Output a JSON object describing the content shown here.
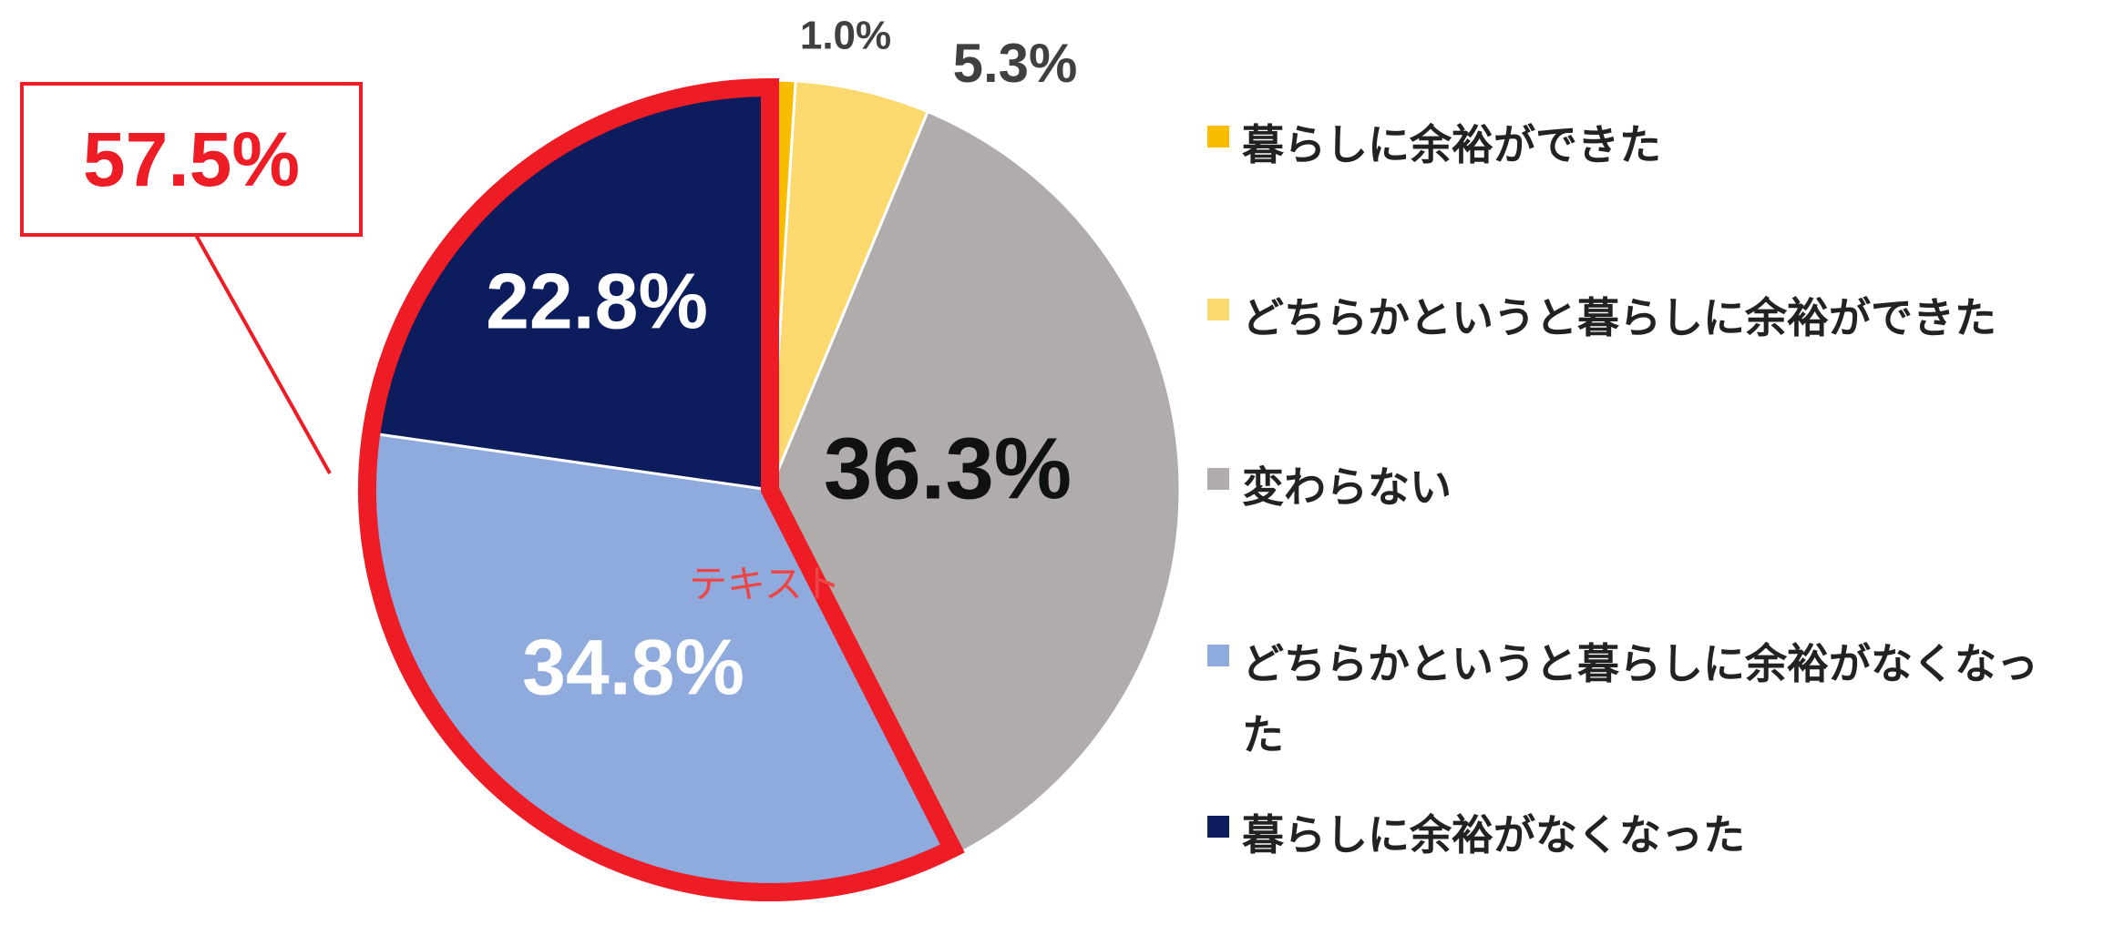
{
  "chart_data": {
    "type": "pie",
    "title": "",
    "slices": [
      {
        "label": "暮らしに余裕ができた",
        "value": 1.0,
        "display": "1.0%",
        "color": "#f9bd00"
      },
      {
        "label": "どちらかというと暮らしに余裕ができた",
        "value": 5.3,
        "display": "5.3%",
        "color": "#fcd96f"
      },
      {
        "label": "変わらない",
        "value": 36.3,
        "display": "36.3%",
        "color": "#b0acab"
      },
      {
        "label": "どちらかというと暮らしに余裕がなくなった",
        "value": 34.8,
        "display": "34.8%",
        "color": "#8faadc"
      },
      {
        "label": "暮らしに余裕がなくなった",
        "value": 22.8,
        "display": "22.8%",
        "color": "#0c1c5c"
      }
    ],
    "start_angle_deg": 0,
    "direction": "clockwise",
    "legend_position": "right",
    "highlight": {
      "slices": [
        "どちらかというと暮らしに余裕がなくなった",
        "暮らしに余裕がなくなった"
      ],
      "total_label": "57.5%",
      "color": "#ee1c25"
    }
  },
  "annotations": {
    "placeholder_text": "テキスト"
  }
}
